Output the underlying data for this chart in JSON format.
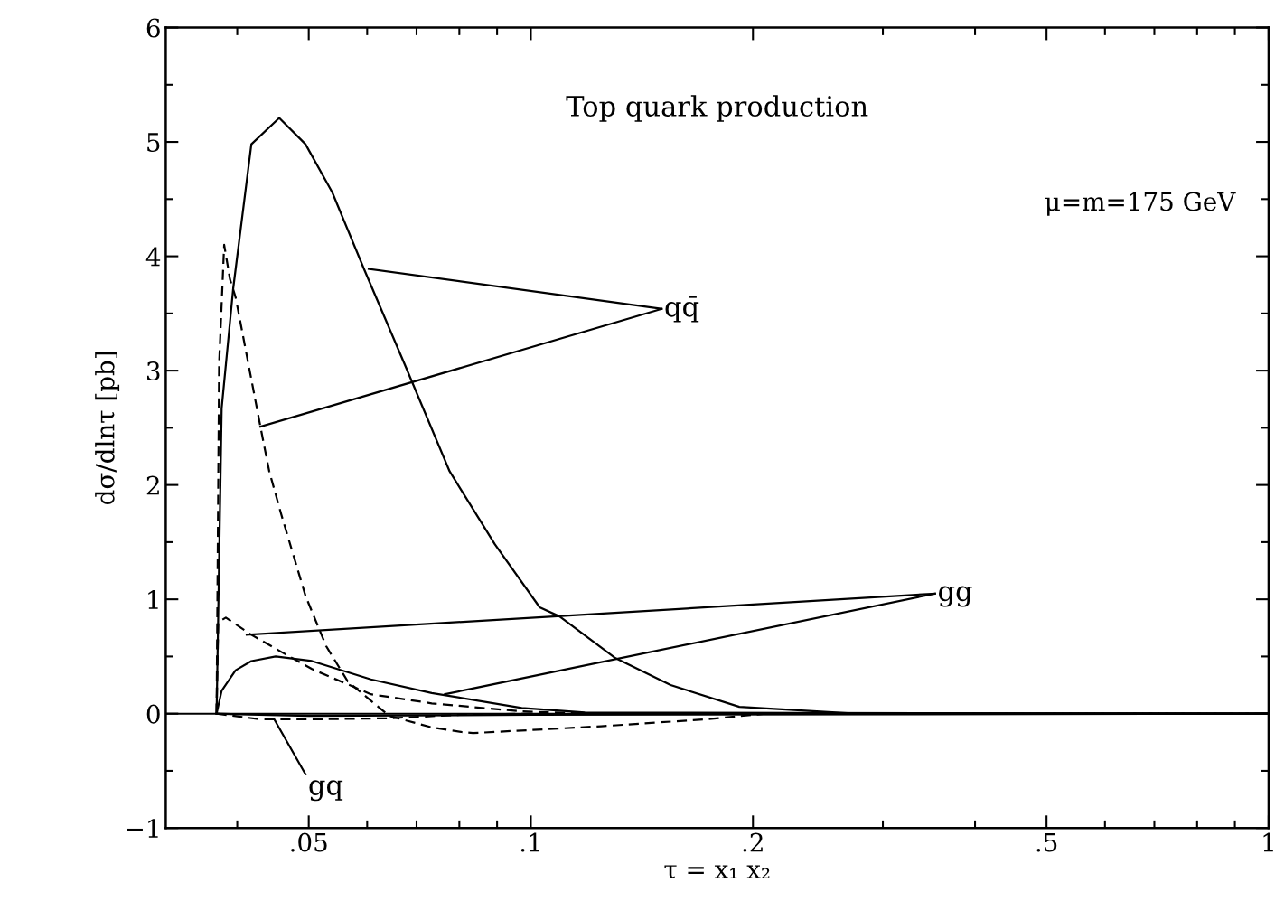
{
  "chart_data": {
    "type": "line",
    "title": "Top quark production",
    "xlabel": "τ = x₁ x₂",
    "ylabel": "dσ/dlnτ [pb]",
    "log": "x",
    "xlim": [
      0.032,
      1.0
    ],
    "xticks": [
      {
        "value": 0.05,
        "label": ".05"
      },
      {
        "value": 0.1,
        "label": ".1"
      },
      {
        "value": 0.2,
        "label": ".2"
      },
      {
        "value": 0.5,
        "label": ".5"
      },
      1
    ],
    "ylim": [
      -1,
      6
    ],
    "yticks": [
      {
        "value": -1,
        "label": "−1"
      },
      0,
      1,
      2,
      3,
      4,
      5,
      6
    ],
    "grid": false,
    "marker": "none",
    "ref_lines": [
      {
        "axis": "y",
        "value": 0,
        "color": "#000000"
      }
    ],
    "annotations": [
      "μ=m=175 GeV",
      {
        "text": "qq̄",
        "x": 0.1504,
        "y": 3.54
      },
      {
        "text": "gg",
        "x": 0.353,
        "y": 1.05
      },
      {
        "text": "gq",
        "x": 0.0495,
        "y": -0.53
      }
    ],
    "series": [
      {
        "color": "#000000",
        "line_style": "solid",
        "x": [
          0.0375,
          0.0381,
          0.0395,
          0.0418,
          0.0456,
          0.0495,
          0.0538,
          0.0594,
          0.0674,
          0.0776,
          0.0894,
          0.1028,
          0.1094,
          0.1299,
          0.1547,
          0.1917,
          0.2755,
          1.0
        ],
        "values": [
          0,
          2.67,
          3.72,
          4.98,
          5.21,
          4.98,
          4.56,
          3.89,
          3.06,
          2.12,
          1.48,
          0.93,
          0.85,
          0.49,
          0.25,
          0.06,
          0,
          0
        ]
      },
      {
        "color": "#000000",
        "line_style": "dashed",
        "x": [
          0.0375,
          0.0378,
          0.0384,
          0.0391,
          0.0398,
          0.043,
          0.0442,
          0.0459,
          0.0495,
          0.0528,
          0.0565,
          0.0643,
          0.0734,
          0.0805,
          0.0835,
          0.1245,
          0.1722,
          0.2079,
          1.0
        ],
        "values": [
          0,
          3.06,
          4.1,
          3.8,
          3.64,
          2.51,
          2.12,
          1.74,
          1.03,
          0.59,
          0.28,
          -0.02,
          -0.12,
          -0.16,
          -0.17,
          -0.11,
          -0.05,
          0,
          0
        ]
      },
      {
        "color": "#000000",
        "line_style": "solid",
        "x": [
          0.0375,
          0.0381,
          0.0398,
          0.0418,
          0.0451,
          0.0505,
          0.0607,
          0.0734,
          0.0972,
          0.1184,
          1.0
        ],
        "values": [
          0,
          0.2,
          0.38,
          0.46,
          0.5,
          0.46,
          0.3,
          0.18,
          0.05,
          0.01,
          0
        ]
      },
      {
        "color": "#000000",
        "line_style": "dashed",
        "x": [
          0.0375,
          0.0377,
          0.0386,
          0.0418,
          0.0459,
          0.0505,
          0.0607,
          0.0734,
          0.0972,
          0.12,
          1.0
        ],
        "values": [
          0,
          0.8,
          0.84,
          0.69,
          0.54,
          0.39,
          0.17,
          0.09,
          0.02,
          0,
          0
        ]
      },
      {
        "color": "#000000",
        "line_style": "solid",
        "x": [
          0.0375,
          0.05,
          0.1,
          1.0
        ],
        "values": [
          0,
          -0.02,
          -0.01,
          0
        ]
      },
      {
        "color": "#000000",
        "line_style": "dashed",
        "x": [
          0.0375,
          0.043,
          0.05,
          0.0643,
          0.08,
          0.1
        ],
        "values": [
          0,
          -0.05,
          -0.05,
          -0.04,
          -0.01,
          0
        ]
      },
      {
        "color": "#000000",
        "line_style": "solid",
        "x": [
          0.0603,
          0.1504
        ],
        "values": [
          3.89,
          3.54
        ]
      },
      {
        "color": "#000000",
        "line_style": "solid",
        "x": [
          0.043,
          0.1504
        ],
        "values": [
          2.51,
          3.54
        ]
      },
      {
        "color": "#000000",
        "line_style": "solid",
        "x": [
          0.0412,
          0.353
        ],
        "values": [
          0.69,
          1.05
        ]
      },
      {
        "color": "#000000",
        "line_style": "solid",
        "x": [
          0.0765,
          0.353
        ],
        "values": [
          0.17,
          1.05
        ]
      },
      {
        "color": "#000000",
        "line_style": "solid",
        "x": [
          0.0449,
          0.0495
        ],
        "values": [
          -0.05,
          -0.53
        ]
      }
    ]
  }
}
